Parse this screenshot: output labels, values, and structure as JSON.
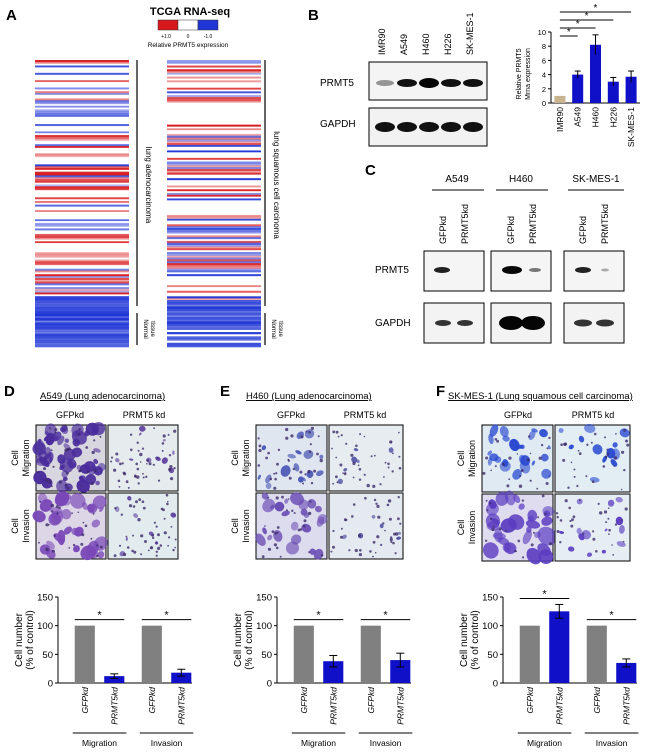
{
  "figure": {
    "panel_letters": [
      "A",
      "B",
      "C",
      "D",
      "E",
      "F"
    ]
  },
  "panel_a": {
    "title": "TCGA RNA-seq",
    "scale_ticks": [
      "+1.0",
      "0",
      "-1.0"
    ],
    "scale_label": "Relative PRMT5 expression",
    "left_group_label": "lung adenocarcinoma",
    "right_group_label": "lung squamous cell carcinoma",
    "normal_label": [
      "Normal",
      "tissue"
    ],
    "colors": {
      "high": "#d7191c",
      "low": "#1f35d6",
      "mid": "#ffffff"
    }
  },
  "panel_b": {
    "lanes": [
      "IMR90",
      "A549",
      "H460",
      "H226",
      "SK-MES-1"
    ],
    "blot_labels": [
      "PRMT5",
      "GAPDH"
    ],
    "chart_ylabel": [
      "Relative PRMT5",
      "Mrna expression"
    ],
    "significance": "*"
  },
  "panel_c": {
    "groups": [
      "A549",
      "H460",
      "SK-MES-1"
    ],
    "lanes": [
      "GFPkd",
      "PRMT5kd"
    ],
    "blot_labels": [
      "PRMT5",
      "GAPDH"
    ]
  },
  "panels_def": [
    {
      "letter": "D",
      "title": "A549 (Lung adenocarcinoma)",
      "col_labels": [
        "GFPkd",
        "PRMT5 kd"
      ],
      "row_labels": [
        "Cell Migration",
        "Cell Invasion"
      ]
    },
    {
      "letter": "E",
      "title": "H460 (Lung adenocarcinoma)",
      "col_labels": [
        "GFPkd",
        "PRMT5 kd"
      ],
      "row_labels": [
        "Cell Migration",
        "Cell Invasion"
      ]
    },
    {
      "letter": "F",
      "title": "SK-MES-1 (Lung squamous cell carcinoma)",
      "col_labels": [
        "GFPkd",
        "PRMT5 kd"
      ],
      "row_labels": [
        "Cell Migration",
        "Cell Invasion"
      ]
    }
  ],
  "chart_data": [
    {
      "type": "bar",
      "id": "B",
      "title": "",
      "categories": [
        "IMR90",
        "A549",
        "H460",
        "H226",
        "SK-MES-1"
      ],
      "values": [
        1.0,
        4.0,
        8.2,
        3.0,
        3.7
      ],
      "errors": [
        0,
        0.5,
        1.4,
        0.6,
        0.8
      ],
      "colors": [
        "#c8b48e",
        "#1010c8",
        "#1010c8",
        "#1010c8",
        "#1010c8"
      ],
      "ylabel": "Relative PRMT5 Mrna expression",
      "ylim": [
        0,
        10
      ],
      "yticks": [
        0,
        2,
        4,
        6,
        8,
        10
      ],
      "annotations": [
        "*",
        "*",
        "*",
        "*"
      ]
    },
    {
      "type": "bar",
      "id": "D",
      "categories": [
        "GFPkd",
        "PRMT5kd",
        "GFPkd",
        "PRMT5kd"
      ],
      "groups": [
        "Migration",
        "Invasion"
      ],
      "values": [
        100,
        12,
        100,
        18
      ],
      "errors": [
        0,
        4,
        0,
        6
      ],
      "colors": [
        "#808080",
        "#1010c8",
        "#808080",
        "#1010c8"
      ],
      "ylabel": "Cell number (% of control)",
      "ylim": [
        0,
        150
      ],
      "yticks": [
        0,
        50,
        100,
        150
      ],
      "annotations": [
        "*",
        "*"
      ]
    },
    {
      "type": "bar",
      "id": "E",
      "categories": [
        "GFPkd",
        "PRMT5kd",
        "GFPkd",
        "PRMT5kd"
      ],
      "groups": [
        "Migration",
        "Invasion"
      ],
      "values": [
        100,
        38,
        100,
        40
      ],
      "errors": [
        0,
        10,
        0,
        12
      ],
      "colors": [
        "#808080",
        "#1010c8",
        "#808080",
        "#1010c8"
      ],
      "ylabel": "Cell number (% of control)",
      "ylim": [
        0,
        150
      ],
      "yticks": [
        0,
        50,
        100,
        150
      ],
      "annotations": [
        "*",
        "*"
      ]
    },
    {
      "type": "bar",
      "id": "F",
      "categories": [
        "GFPkd",
        "PRMT5kd",
        "GFPkd",
        "PRMT5kd"
      ],
      "groups": [
        "Migration",
        "Invasion"
      ],
      "values": [
        100,
        125,
        100,
        35
      ],
      "errors": [
        0,
        12,
        0,
        7
      ],
      "colors": [
        "#808080",
        "#1010c8",
        "#808080",
        "#1010c8"
      ],
      "ylabel": "Cell number (% of control)",
      "ylim": [
        0,
        150
      ],
      "yticks": [
        0,
        50,
        100,
        150
      ],
      "annotations": [
        "*",
        "*"
      ]
    }
  ]
}
